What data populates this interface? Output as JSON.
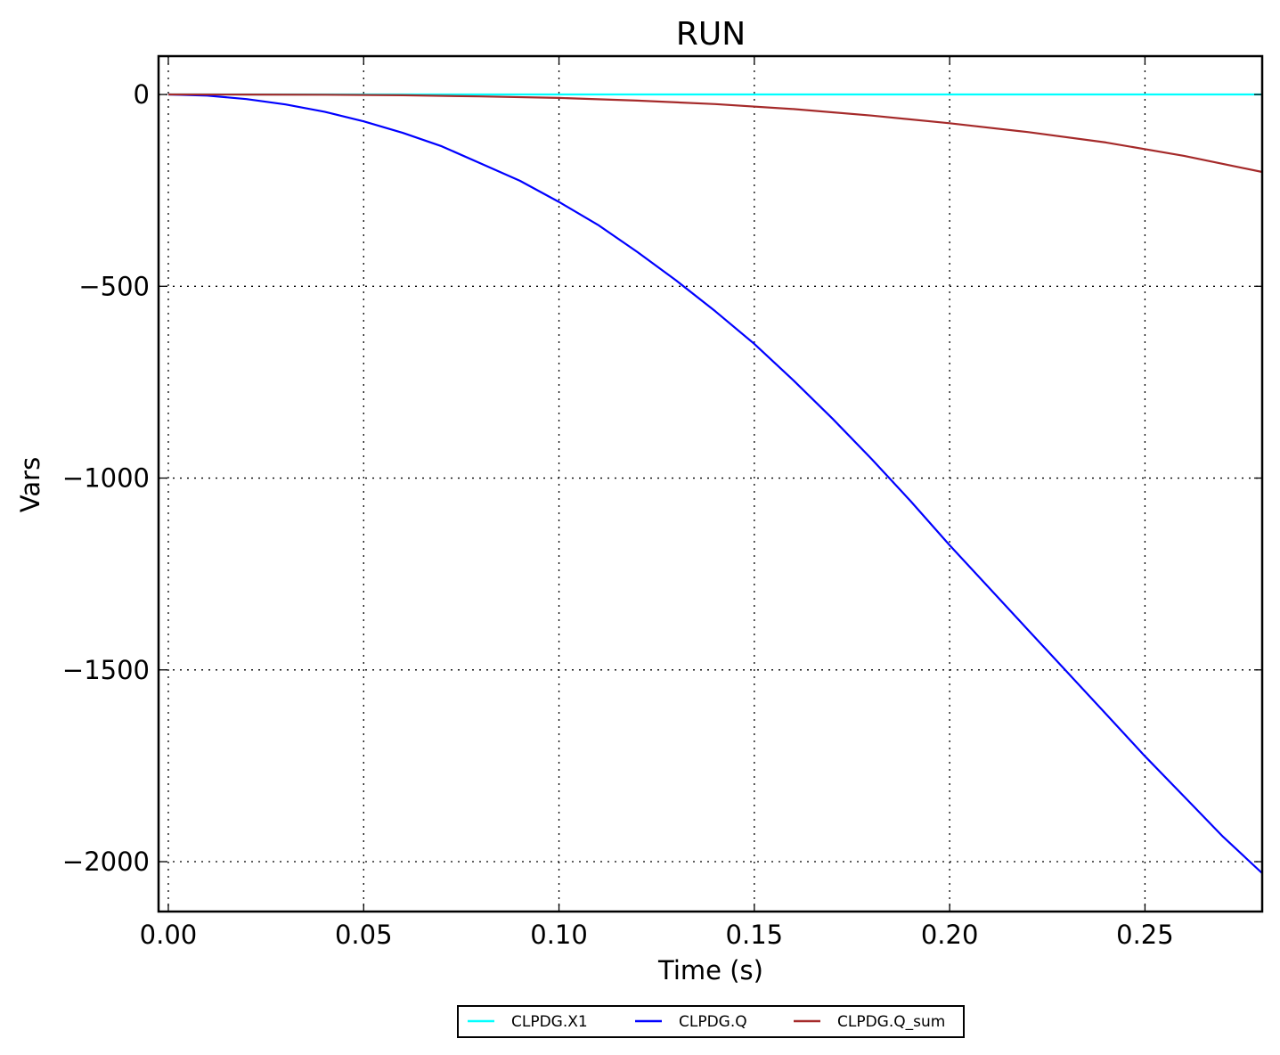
{
  "chart_data": {
    "type": "line",
    "title": "RUN",
    "xlabel": "Time (s)",
    "ylabel": "Vars",
    "xlim": [
      -0.0025,
      0.28
    ],
    "ylim": [
      -2130,
      100
    ],
    "x_ticks": [
      0.0,
      0.05,
      0.1,
      0.15,
      0.2,
      0.25
    ],
    "x_tick_labels": [
      "0.00",
      "0.05",
      "0.10",
      "0.15",
      "0.20",
      "0.25"
    ],
    "y_ticks": [
      0,
      -500,
      -1000,
      -1500,
      -2000
    ],
    "y_tick_labels": [
      "0",
      "−500",
      "−1000",
      "−1500",
      "−2000"
    ],
    "grid": true,
    "legend_position": "bottom-center",
    "series": [
      {
        "name": "CLPDG.X1",
        "color": "#00ffff",
        "x": [
          0.0,
          0.28
        ],
        "y": [
          0,
          0
        ]
      },
      {
        "name": "CLPDG.Q",
        "color": "#0000ff",
        "x": [
          0.0,
          0.01,
          0.02,
          0.03,
          0.04,
          0.05,
          0.06,
          0.07,
          0.08,
          0.09,
          0.1,
          0.11,
          0.12,
          0.13,
          0.14,
          0.15,
          0.16,
          0.17,
          0.18,
          0.19,
          0.2,
          0.21,
          0.22,
          0.23,
          0.24,
          0.25,
          0.26,
          0.27,
          0.28
        ],
        "y": [
          0,
          -3,
          -12,
          -26,
          -45,
          -70,
          -100,
          -135,
          -180,
          -225,
          -280,
          -340,
          -410,
          -485,
          -565,
          -650,
          -745,
          -845,
          -950,
          -1060,
          -1175,
          -1285,
          -1395,
          -1505,
          -1615,
          -1725,
          -1830,
          -1935,
          -2030
        ]
      },
      {
        "name": "CLPDG.Q_sum",
        "color": "#a52a2a",
        "x": [
          0.0,
          0.02,
          0.04,
          0.06,
          0.08,
          0.1,
          0.12,
          0.14,
          0.16,
          0.18,
          0.2,
          0.22,
          0.24,
          0.26,
          0.28
        ],
        "y": [
          0,
          -0.1,
          -0.6,
          -2,
          -5,
          -9,
          -16,
          -25,
          -38,
          -55,
          -75,
          -98,
          -125,
          -160,
          -202
        ]
      }
    ]
  }
}
